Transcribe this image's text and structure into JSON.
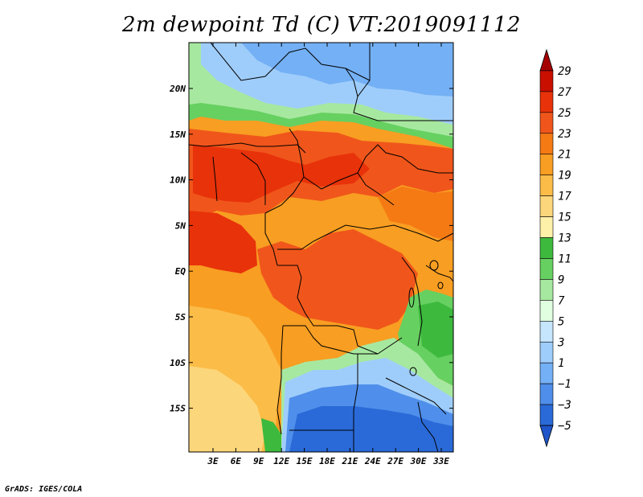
{
  "title": "2m dewpoint Td (C) VT:2019091112",
  "footer": "GrADS: IGES/COLA",
  "map": {
    "lat_labels": [
      "20N",
      "15N",
      "10N",
      "5N",
      "EQ",
      "5S",
      "10S",
      "15S"
    ],
    "lon_labels": [
      "3E",
      "6E",
      "9E",
      "12E",
      "15E",
      "18E",
      "21E",
      "24E",
      "27E",
      "30E",
      "33E"
    ]
  },
  "colorbar": {
    "labels": [
      "29",
      "27",
      "25",
      "23",
      "21",
      "19",
      "17",
      "15",
      "13",
      "11",
      "9",
      "7",
      "5",
      "3",
      "1",
      "−1",
      "−3",
      "−5"
    ],
    "colors": [
      "#a50000",
      "#c80f00",
      "#e8320a",
      "#f0561b",
      "#f57a14",
      "#f89e22",
      "#fbbc48",
      "#fcd67a",
      "#fdf0a8",
      "#3dba3d",
      "#66d061",
      "#a7e8a0",
      "#e0ffe0",
      "#c6e6fd",
      "#9fcdfb",
      "#74b0f5",
      "#4f8eea",
      "#2a6ad8",
      "#1f55c8"
    ]
  }
}
